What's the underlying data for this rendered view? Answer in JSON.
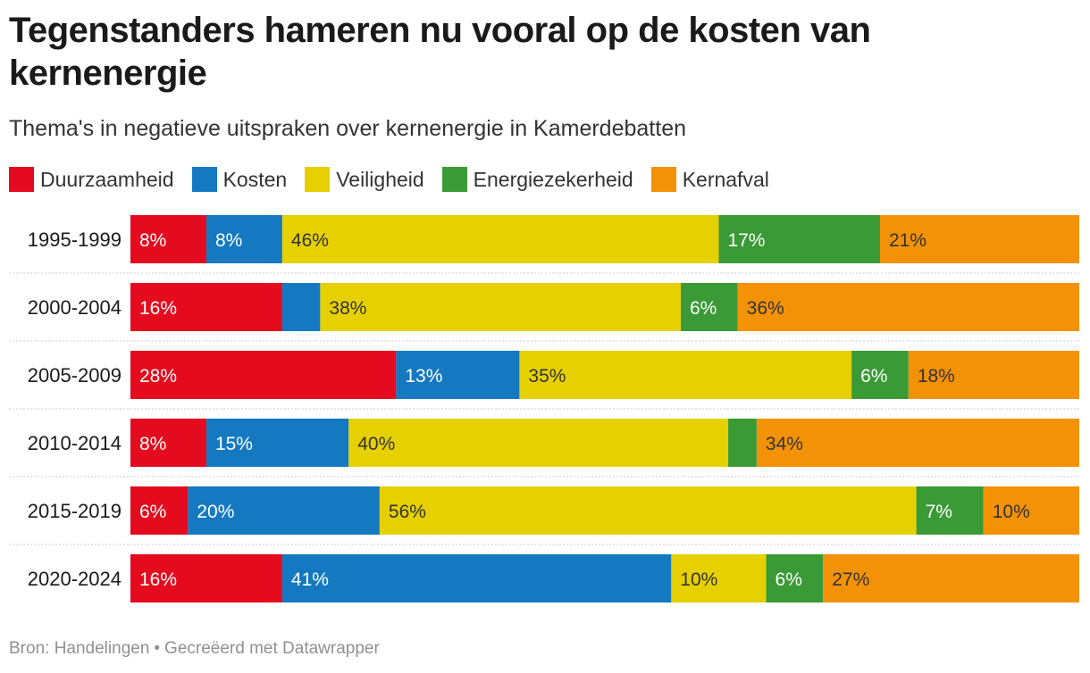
{
  "title": "Tegenstanders hameren nu vooral op de kosten van kernenergie",
  "subtitle": "Thema's in negatieve uitspraken over kernenergie in Kamerdebatten",
  "legend": [
    {
      "label": "Duurzaamheid",
      "color": "#e30b1d"
    },
    {
      "label": "Kosten",
      "color": "#1479c1"
    },
    {
      "label": "Veiligheid",
      "color": "#e6d000"
    },
    {
      "label": "Energiezekerheid",
      "color": "#3a9a36"
    },
    {
      "label": "Kernafval",
      "color": "#f39207"
    }
  ],
  "footer": {
    "source": "Bron: Handelingen",
    "separator": "•",
    "credit": "Gecreëerd met Datawrapper"
  },
  "chart_data": {
    "type": "bar",
    "orientation": "horizontal",
    "stacked": true,
    "unit": "%",
    "categories": [
      "1995-1999",
      "2000-2004",
      "2005-2009",
      "2010-2014",
      "2015-2019",
      "2020-2024"
    ],
    "series": [
      {
        "name": "Duurzaamheid",
        "color": "#e30b1d",
        "text_color": "#ffffff",
        "values": [
          8,
          16,
          28,
          8,
          6,
          16
        ],
        "labels": [
          "8%",
          "16%",
          "28%",
          "8%",
          "6%",
          "16%"
        ]
      },
      {
        "name": "Kosten",
        "color": "#1479c1",
        "text_color": "#ffffff",
        "values": [
          8,
          4,
          13,
          15,
          20,
          41
        ],
        "labels": [
          "8%",
          "",
          "13%",
          "15%",
          "20%",
          "41%"
        ]
      },
      {
        "name": "Veiligheid",
        "color": "#e6d000",
        "text_color": "#333333",
        "values": [
          46,
          38,
          35,
          40,
          56,
          10
        ],
        "labels": [
          "46%",
          "38%",
          "35%",
          "40%",
          "56%",
          "10%"
        ]
      },
      {
        "name": "Energiezekerheid",
        "color": "#3a9a36",
        "text_color": "#ffffff",
        "values": [
          17,
          6,
          6,
          3,
          7,
          6
        ],
        "labels": [
          "17%",
          "6%",
          "6%",
          "",
          "7%",
          "6%"
        ]
      },
      {
        "name": "Kernafval",
        "color": "#f39207",
        "text_color": "#333333",
        "values": [
          21,
          36,
          18,
          34,
          10,
          27
        ],
        "labels": [
          "21%",
          "36%",
          "18%",
          "34%",
          "10%",
          "27%"
        ]
      }
    ]
  }
}
